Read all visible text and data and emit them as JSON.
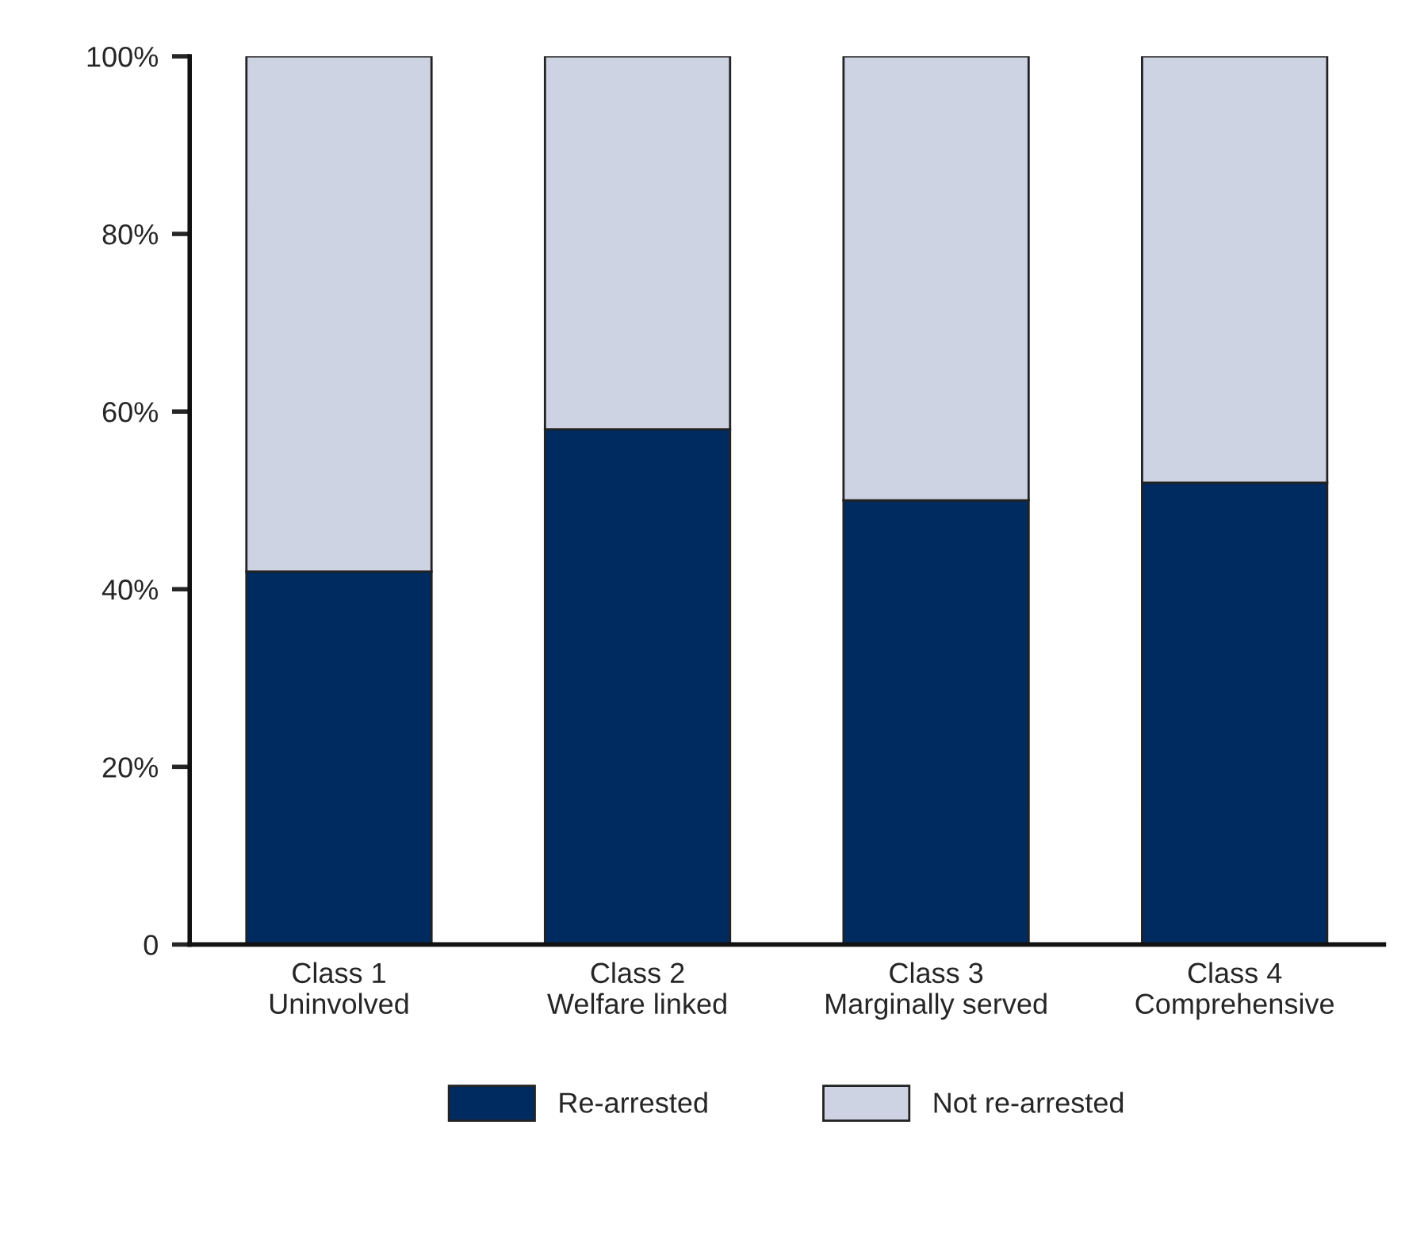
{
  "chart_data": {
    "type": "bar",
    "stacked": true,
    "categories": [
      "Class 1\nUninvolved",
      "Class 2\nWelfare linked",
      "Class 3\nMarginally served",
      "Class 4\nComprehensive"
    ],
    "series": [
      {
        "name": "Re-arrested",
        "color": "#002b61",
        "values": [
          42,
          58,
          50,
          52
        ]
      },
      {
        "name": "Not re-arrested",
        "color": "#cdd3e3",
        "values": [
          58,
          42,
          50,
          48
        ]
      }
    ],
    "ylim": [
      0,
      100
    ],
    "yticks": [
      {
        "value": 0,
        "label": "0"
      },
      {
        "value": 20,
        "label": "20%"
      },
      {
        "value": 40,
        "label": "40%"
      },
      {
        "value": 60,
        "label": "60%"
      },
      {
        "value": 80,
        "label": "80%"
      },
      {
        "value": 100,
        "label": "100%"
      }
    ],
    "grid": false,
    "legend": "bottom"
  }
}
